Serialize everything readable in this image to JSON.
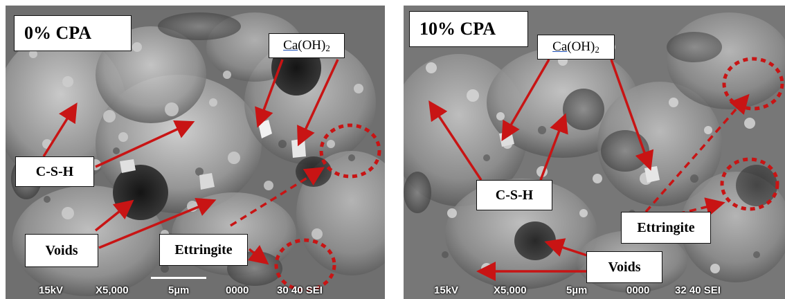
{
  "panels": [
    {
      "title": "0% CPA",
      "labels": {
        "ca_prefix": "Ca",
        "ca_body": "(OH)",
        "ca_sub": "2",
        "csh": "C-S-H",
        "voids": "Voids",
        "ettringite": "Ettringite"
      },
      "footer": {
        "kv": "15kV",
        "mag": "X5,000",
        "scale": "5µm",
        "num": "0000",
        "wd": "30 40 SEI"
      }
    },
    {
      "title": "10% CPA",
      "labels": {
        "ca_prefix": "Ca",
        "ca_body": "(OH)",
        "ca_sub": "2",
        "csh": "C-S-H",
        "voids": "Voids",
        "ettringite": "Ettringite"
      },
      "footer": {
        "kv": "15kV",
        "mag": "X5,000",
        "scale": "5µm",
        "num": "0000",
        "wd": "32 40 SEI"
      }
    }
  ],
  "colors": {
    "arrow": "#c81414",
    "label_bg": "#ffffff",
    "label_border": "#111111",
    "micrograph": "#6d6d6d"
  }
}
